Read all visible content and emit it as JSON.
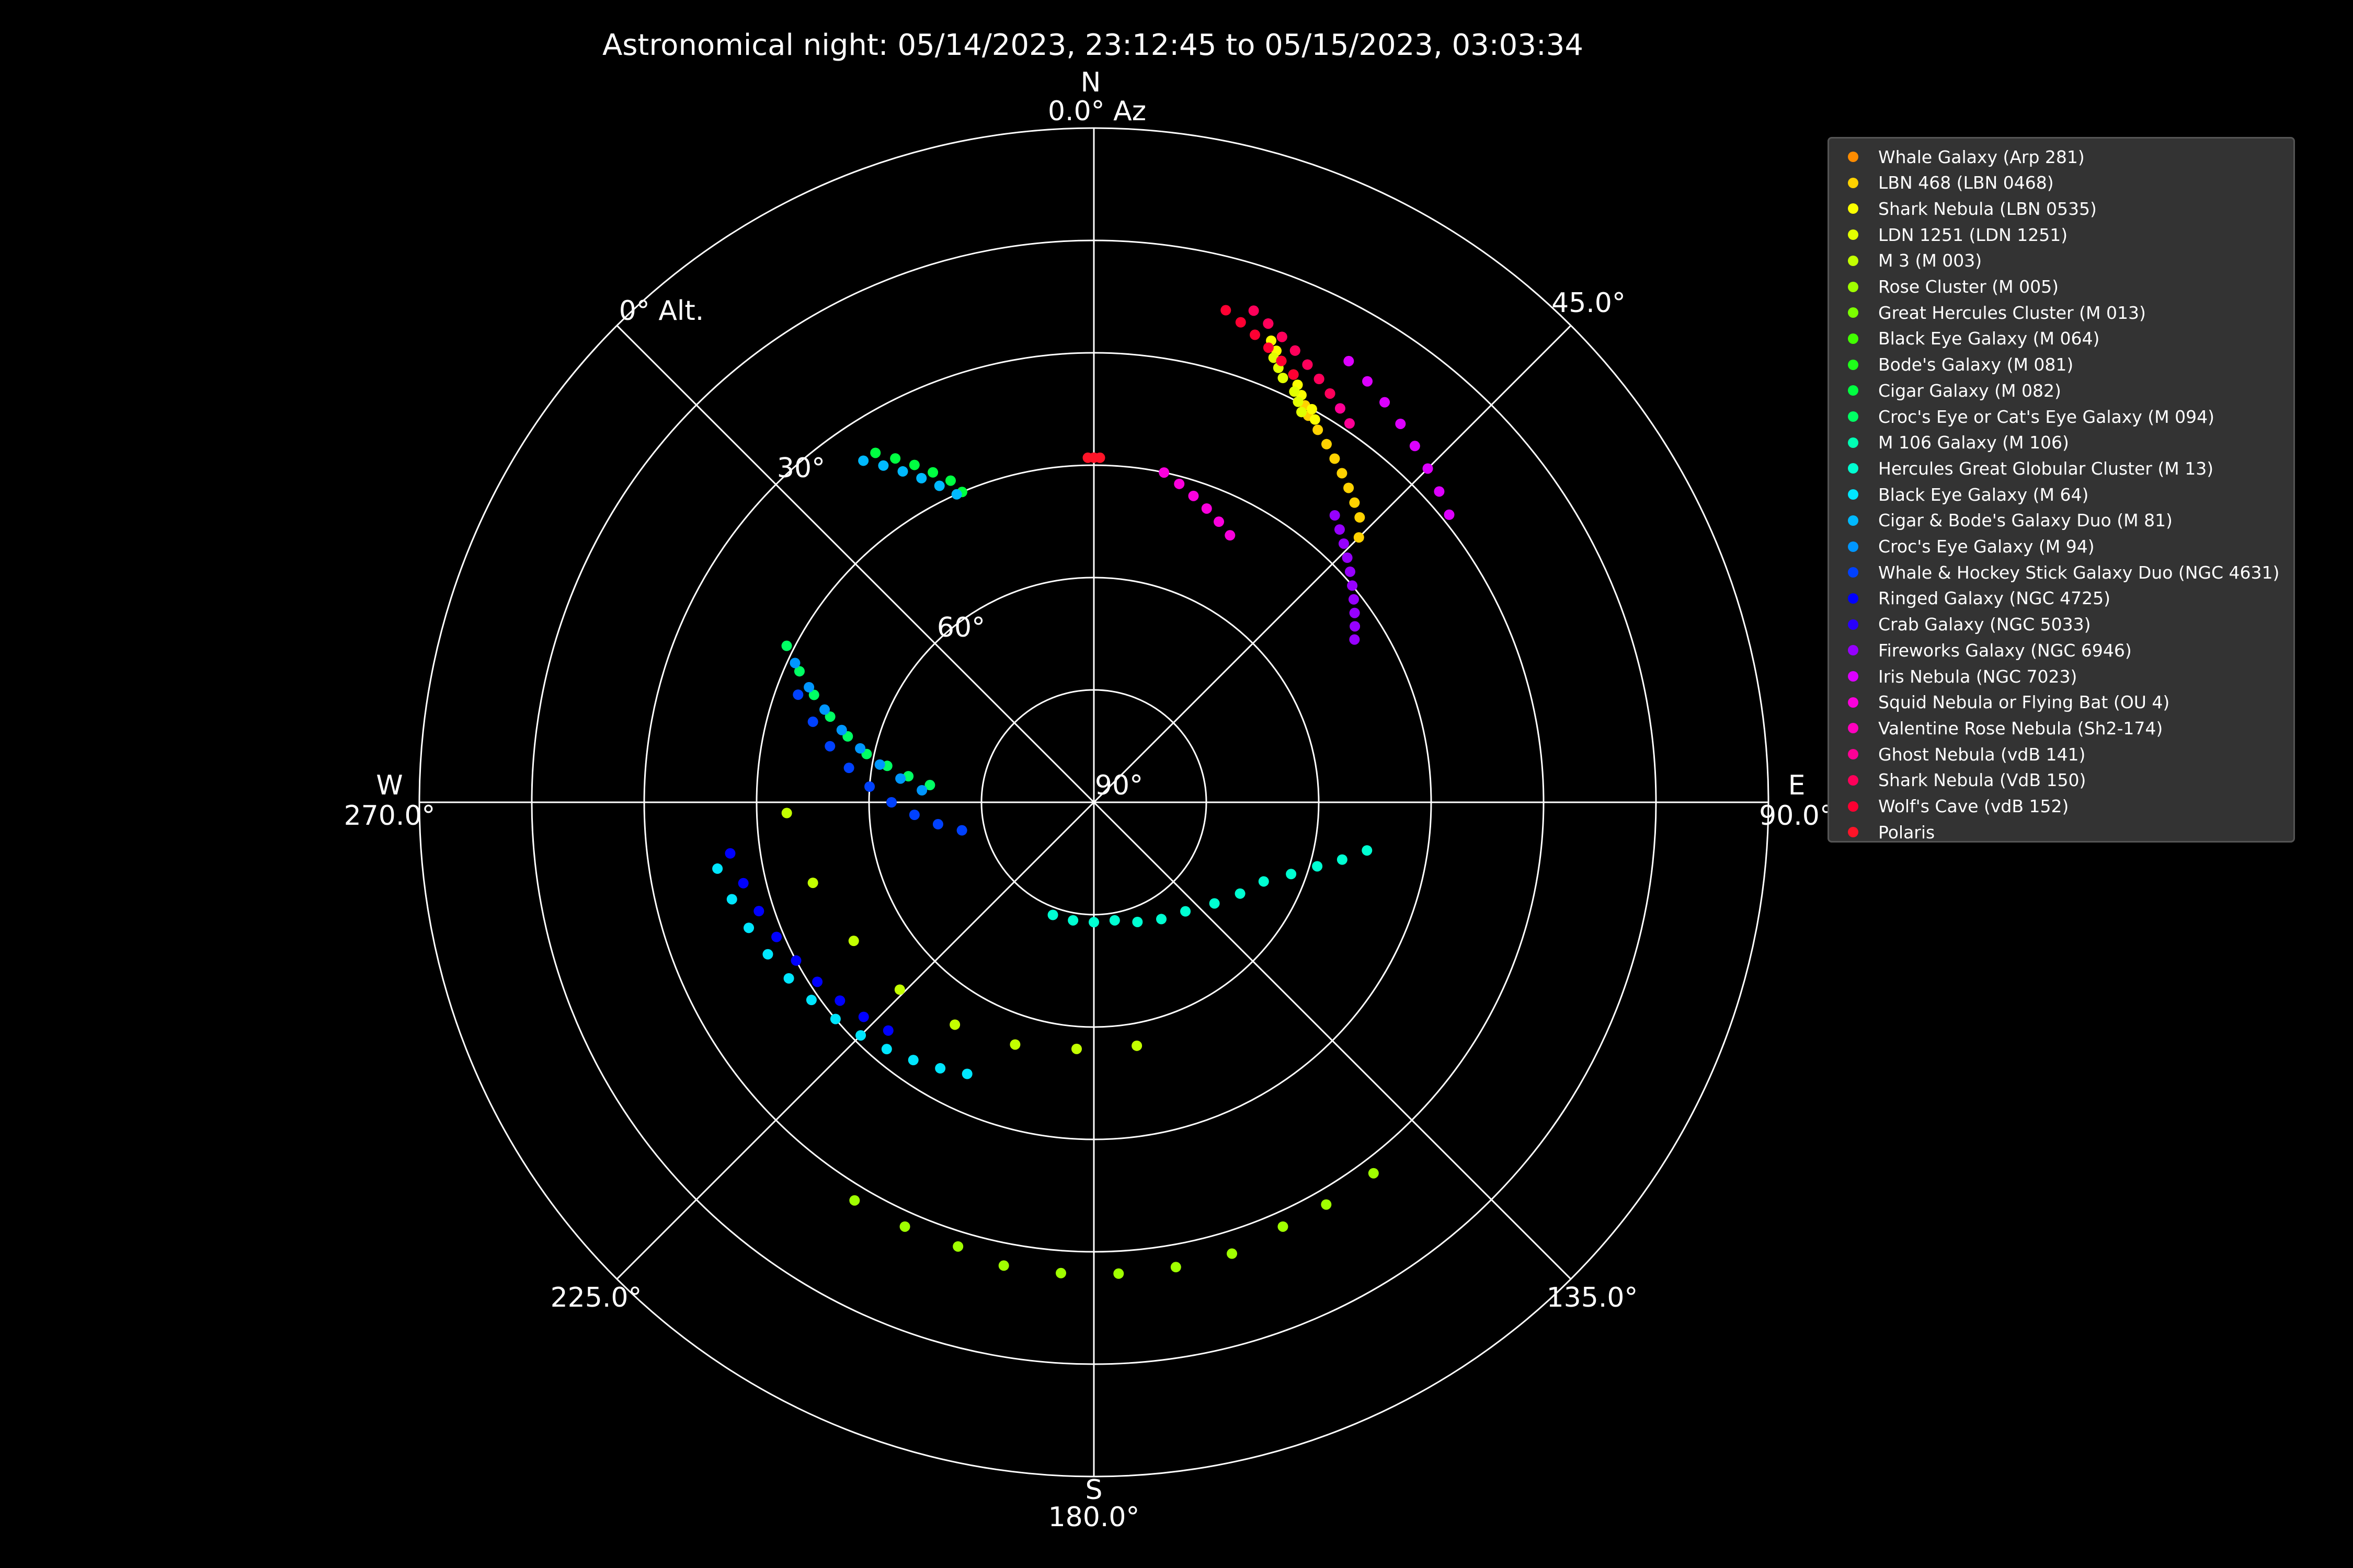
{
  "chart_data": {
    "type": "scatter",
    "projection": "polar (azimuth clockwise from north, altitude 90° at center, 0° at outer edge)",
    "title": "Astronomical night: 05/14/2023, 23:12:45 to 05/15/2023, 03:03:34",
    "compass": {
      "north": "N",
      "east": "E",
      "south": "S",
      "west": "W"
    },
    "azimuth_tick_labels": [
      {
        "az": 0,
        "label": "0.0° Az"
      },
      {
        "az": 45,
        "label": "45.0°"
      },
      {
        "az": 90,
        "label": "90.0°"
      },
      {
        "az": 135,
        "label": "135.0°"
      },
      {
        "az": 180,
        "label": "180.0°"
      },
      {
        "az": 225,
        "label": "225.0°"
      },
      {
        "az": 270,
        "label": "270.0°"
      }
    ],
    "altitude_tick_labels": [
      {
        "alt": 0,
        "label": "0° Alt."
      },
      {
        "alt": 30,
        "label": "30°"
      },
      {
        "alt": 60,
        "label": "60°"
      },
      {
        "alt": 90,
        "label": "90°"
      }
    ],
    "altitude_rings": [
      0,
      15,
      30,
      45,
      60,
      75
    ],
    "azimuth_spokes": [
      0,
      45,
      90,
      135,
      180,
      225,
      270,
      315
    ],
    "grid": true,
    "legend_position": "right",
    "series": [
      {
        "name": "Whale Galaxy (Arp 281)",
        "color": "#ff8c00",
        "points": []
      },
      {
        "name": "LBN 468 (LBN 0468)",
        "color": "#ffd200",
        "points": [
          [
            28,
            30
          ],
          [
            29,
            31
          ],
          [
            31,
            32
          ],
          [
            33,
            33
          ],
          [
            35,
            34
          ],
          [
            37,
            35
          ],
          [
            39,
            36
          ],
          [
            41,
            37
          ],
          [
            43,
            38
          ],
          [
            45,
            40
          ]
        ]
      },
      {
        "name": "Shark Nebula (LBN 0535)",
        "color": "#fbff00",
        "points": [
          [
            21,
            24
          ],
          [
            22,
            25
          ],
          [
            23,
            26
          ],
          [
            25,
            27
          ],
          [
            26,
            28
          ],
          [
            27,
            29
          ],
          [
            29,
            30
          ],
          [
            30,
            31
          ]
        ]
      },
      {
        "name": "LDN 1251 (LDN 1251)",
        "color": "#e2ff00",
        "points": [
          [
            22,
            26
          ],
          [
            23,
            27
          ],
          [
            24,
            28
          ],
          [
            26,
            29
          ],
          [
            27,
            30
          ],
          [
            28,
            31
          ]
        ]
      },
      {
        "name": "M 3 (M 003)",
        "color": "#c3ff00",
        "points": [
          [
            268,
            49
          ],
          [
            254,
            51
          ],
          [
            240,
            53
          ],
          [
            226,
            54
          ],
          [
            212,
            55
          ],
          [
            198,
            56
          ],
          [
            184,
            57
          ],
          [
            170,
            57
          ]
        ]
      },
      {
        "name": "Rose Cluster (M 005)",
        "color": "#a0ff00",
        "points": [
          [
            211,
            28
          ],
          [
            204,
            28
          ],
          [
            197,
            28
          ],
          [
            191,
            27
          ],
          [
            184,
            27
          ],
          [
            177,
            27
          ],
          [
            170,
            27
          ],
          [
            163,
            27
          ],
          [
            156,
            28
          ],
          [
            150,
            28
          ],
          [
            143,
            28
          ]
        ]
      },
      {
        "name": "Great Hercules Cluster (M 013)",
        "color": "#7bff00",
        "points": []
      },
      {
        "name": "Black Eye Galaxy (M 064)",
        "color": "#41ff00",
        "points": []
      },
      {
        "name": "Bode's Galaxy (M 081)",
        "color": "#1eff19",
        "points": []
      },
      {
        "name": "Cigar Galaxy (M 082)",
        "color": "#00ff41",
        "points": [
          [
            328,
            35
          ],
          [
            330,
            37
          ],
          [
            332,
            39
          ],
          [
            334,
            41
          ],
          [
            336,
            43
          ],
          [
            337,
            45
          ]
        ]
      },
      {
        "name": "Croc's Eye or Cat's Eye Galaxy (M 094)",
        "color": "#00ff64",
        "points": [
          [
            297,
            44
          ],
          [
            294,
            47
          ],
          [
            291,
            50
          ],
          [
            288,
            53
          ],
          [
            285,
            56
          ],
          [
            282,
            59
          ],
          [
            280,
            62
          ],
          [
            278,
            65
          ],
          [
            276,
            68
          ]
        ]
      },
      {
        "name": "M 106 Galaxy (M 106)",
        "color": "#00ffb4",
        "points": []
      },
      {
        "name": "Hercules Great Globular Cluster (M 13)",
        "color": "#00ffd2",
        "points": [
          [
            200,
            74
          ],
          [
            190,
            74
          ],
          [
            180,
            74
          ],
          [
            170,
            74
          ],
          [
            160,
            73
          ],
          [
            150,
            72
          ],
          [
            140,
            71
          ],
          [
            130,
            69
          ],
          [
            122,
            67
          ],
          [
            115,
            65
          ],
          [
            110,
            62
          ],
          [
            106,
            59
          ],
          [
            103,
            56
          ],
          [
            100,
            53
          ]
        ]
      },
      {
        "name": "Black Eye Galaxy (M 64)",
        "color": "#00e6ff",
        "points": [
          [
            260,
            39
          ],
          [
            255,
            40
          ],
          [
            250,
            41
          ],
          [
            245,
            42
          ],
          [
            240,
            43
          ],
          [
            235,
            44
          ],
          [
            230,
            45
          ],
          [
            225,
            46
          ],
          [
            220,
            47
          ],
          [
            215,
            48
          ],
          [
            210,
            49
          ],
          [
            205,
            50
          ]
        ]
      },
      {
        "name": "Cigar & Bode's Galaxy Duo (M 81)",
        "color": "#00b9ff",
        "points": [
          [
            326,
            35
          ],
          [
            328,
            37
          ],
          [
            330,
            39
          ],
          [
            332,
            41
          ],
          [
            334,
            43
          ],
          [
            336,
            45
          ]
        ]
      },
      {
        "name": "Croc's Eye Galaxy (M 94)",
        "color": "#0096ff",
        "points": [
          [
            295,
            46
          ],
          [
            292,
            49
          ],
          [
            289,
            52
          ],
          [
            286,
            55
          ],
          [
            283,
            58
          ],
          [
            280,
            61
          ],
          [
            277,
            64
          ],
          [
            274,
            67
          ]
        ]
      },
      {
        "name": "Whale & Hockey Stick Galaxy Duo (NGC 4631)",
        "color": "#0041ff",
        "points": [
          [
            290,
            48
          ],
          [
            286,
            51
          ],
          [
            282,
            54
          ],
          [
            278,
            57
          ],
          [
            274,
            60
          ],
          [
            270,
            63
          ],
          [
            266,
            66
          ],
          [
            262,
            69
          ],
          [
            258,
            72
          ]
        ]
      },
      {
        "name": "Ringed Galaxy (NGC 4725)",
        "color": "#0000ff",
        "points": [
          [
            262,
            41
          ],
          [
            257,
            42
          ],
          [
            252,
            43
          ],
          [
            247,
            44
          ],
          [
            242,
            45
          ],
          [
            237,
            46
          ],
          [
            232,
            47
          ],
          [
            227,
            48
          ],
          [
            222,
            49
          ]
        ]
      },
      {
        "name": "Crab Galaxy (NGC 5033)",
        "color": "#2800ff",
        "points": []
      },
      {
        "name": "Fireworks Galaxy (NGC 6946)",
        "color": "#9600ff",
        "points": [
          [
            40,
            40
          ],
          [
            42,
            41
          ],
          [
            44,
            42
          ],
          [
            46,
            43
          ],
          [
            48,
            44
          ],
          [
            50,
            45
          ],
          [
            52,
            46
          ],
          [
            54,
            47
          ],
          [
            56,
            48
          ],
          [
            58,
            49
          ]
        ]
      },
      {
        "name": "Iris Nebula (NGC 7023)",
        "color": "#dc00ff",
        "points": [
          [
            30,
            22
          ],
          [
            33,
            23
          ],
          [
            36,
            24
          ],
          [
            39,
            25
          ],
          [
            42,
            26
          ],
          [
            45,
            27
          ],
          [
            48,
            28
          ],
          [
            51,
            29
          ]
        ]
      },
      {
        "name": "Squid Nebula or Flying Bat (OU 4)",
        "color": "#fa00dc",
        "points": [
          [
            12,
            45
          ],
          [
            15,
            46
          ],
          [
            18,
            47
          ],
          [
            21,
            48
          ],
          [
            24,
            49
          ],
          [
            27,
            50
          ]
        ]
      },
      {
        "name": "Valentine Rose Nebula (Sh2-174)",
        "color": "#ff00be",
        "points": []
      },
      {
        "name": "Ghost Nebula (vdB 141)",
        "color": "#ff0096",
        "points": [
          [
            20,
            22
          ],
          [
            22,
            23
          ],
          [
            24,
            24
          ],
          [
            26,
            25
          ],
          [
            28,
            26
          ],
          [
            30,
            27
          ],
          [
            32,
            28
          ],
          [
            34,
            29
          ]
        ]
      },
      {
        "name": "Shark Nebula (VdB 150)",
        "color": "#ff005a",
        "points": [
          [
            18,
            21
          ],
          [
            20,
            22
          ],
          [
            22,
            23
          ],
          [
            24,
            24
          ],
          [
            26,
            25
          ],
          [
            28,
            26
          ],
          [
            30,
            27
          ]
        ]
      },
      {
        "name": "Wolf's Cave (vdB 152)",
        "color": "#ff0032",
        "points": [
          [
            15,
            22
          ],
          [
            17,
            23
          ],
          [
            19,
            24
          ],
          [
            21,
            25
          ],
          [
            23,
            26
          ],
          [
            25,
            27
          ]
        ]
      },
      {
        "name": "Polaris",
        "color": "#ff1428",
        "points": [
          [
            359,
            44
          ],
          [
            0,
            44
          ],
          [
            1,
            44
          ]
        ]
      }
    ]
  }
}
